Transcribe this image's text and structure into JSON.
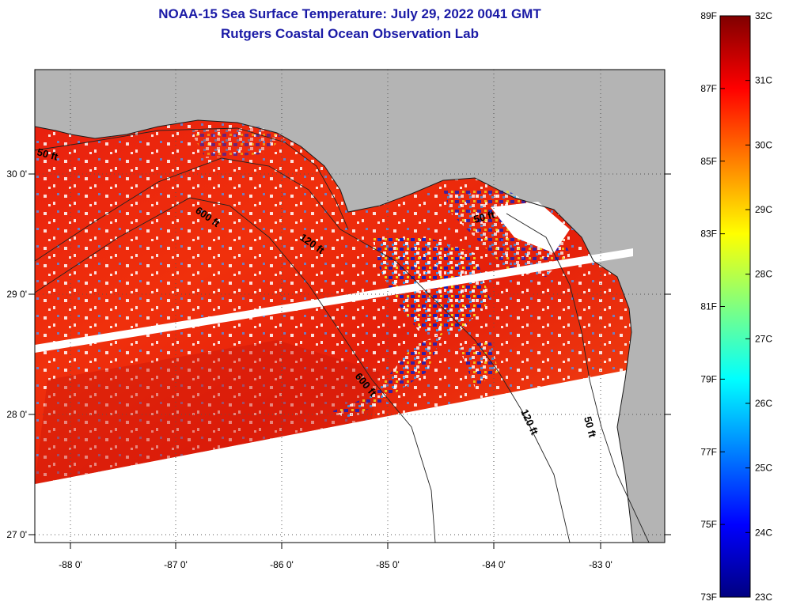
{
  "header": {
    "title_line1": "NOAA-15 Sea Surface Temperature:  July 29, 2022 0041 GMT",
    "title_line2": "Rutgers Coastal Ocean Observation Lab"
  },
  "map": {
    "lon_ticks": [
      "-88 0'",
      "-87 0'",
      "-86 0'",
      "-85 0'",
      "-84 0'",
      "-83 0'"
    ],
    "lat_ticks": [
      "30 0'",
      "29 0'",
      "28 0'",
      "27 0'"
    ],
    "contour_labels": [
      "50 ft",
      "600 ft",
      "120 ft",
      "50 ft",
      "600 ft",
      "120 ft",
      "50 ft"
    ],
    "land_color": "#b4b4b4",
    "nodata_color": "#ffffff"
  },
  "colorbar": {
    "fahrenheit_labels": [
      "89F",
      "87F",
      "85F",
      "83F",
      "81F",
      "79F",
      "77F",
      "75F",
      "73F"
    ],
    "celsius_labels": [
      "32C",
      "31C",
      "30C",
      "29C",
      "28C",
      "27C",
      "26C",
      "25C",
      "24C",
      "23C"
    ],
    "colors": [
      "#000080",
      "#0000ff",
      "#0080ff",
      "#00ffff",
      "#80ff80",
      "#ffff00",
      "#ff8000",
      "#ff0000",
      "#800000"
    ]
  }
}
